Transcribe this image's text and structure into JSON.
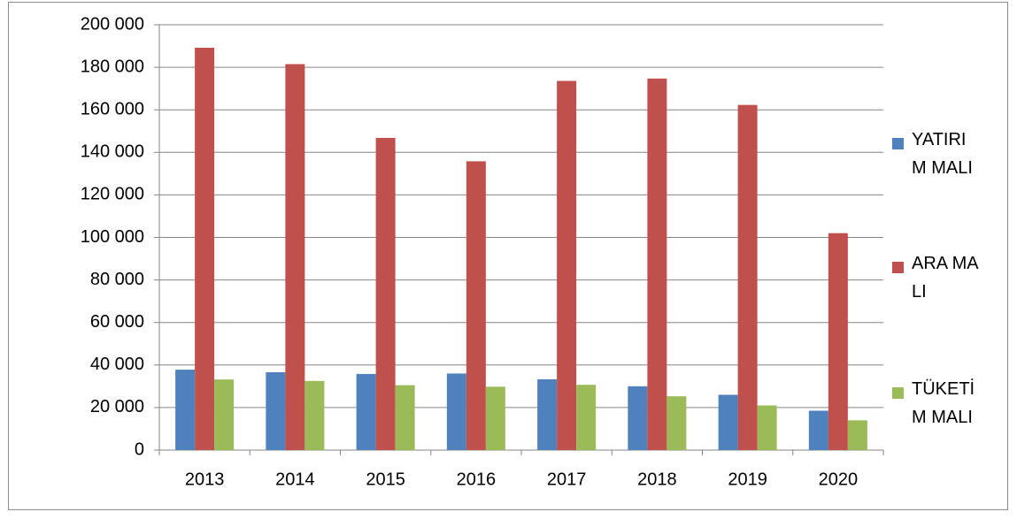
{
  "chart_data": {
    "type": "bar",
    "categories": [
      "2013",
      "2014",
      "2015",
      "2016",
      "2017",
      "2018",
      "2019",
      "2020"
    ],
    "series": [
      {
        "name": "YATIRIM MALI",
        "color": "#4f81bd",
        "values": [
          37800,
          36600,
          35800,
          36000,
          33300,
          30000,
          26000,
          18500
        ]
      },
      {
        "name": "ARA MALI",
        "color": "#c0504d",
        "values": [
          189200,
          181500,
          146800,
          135800,
          173600,
          174700,
          162300,
          102000
        ]
      },
      {
        "name": "TÜKETİM MALI",
        "color": "#9bbb59",
        "values": [
          33200,
          32500,
          30500,
          29800,
          30700,
          25300,
          21000,
          14000
        ]
      }
    ],
    "ylim": [
      0,
      200000
    ],
    "yticks": [
      0,
      {
        "value": 20000,
        "label": "20 000"
      },
      {
        "value": 40000,
        "label": "40 000"
      },
      {
        "value": 60000,
        "label": "60 000"
      },
      {
        "value": 80000,
        "label": "80 000"
      },
      {
        "value": 100000,
        "label": "100 000"
      },
      {
        "value": 120000,
        "label": "120 000"
      },
      {
        "value": 140000,
        "label": "140 000"
      },
      {
        "value": 160000,
        "label": "160 000"
      },
      {
        "value": 180000,
        "label": "180 000"
      },
      {
        "value": 200000,
        "label": "200 000"
      }
    ],
    "grid": true,
    "legend": "right"
  }
}
